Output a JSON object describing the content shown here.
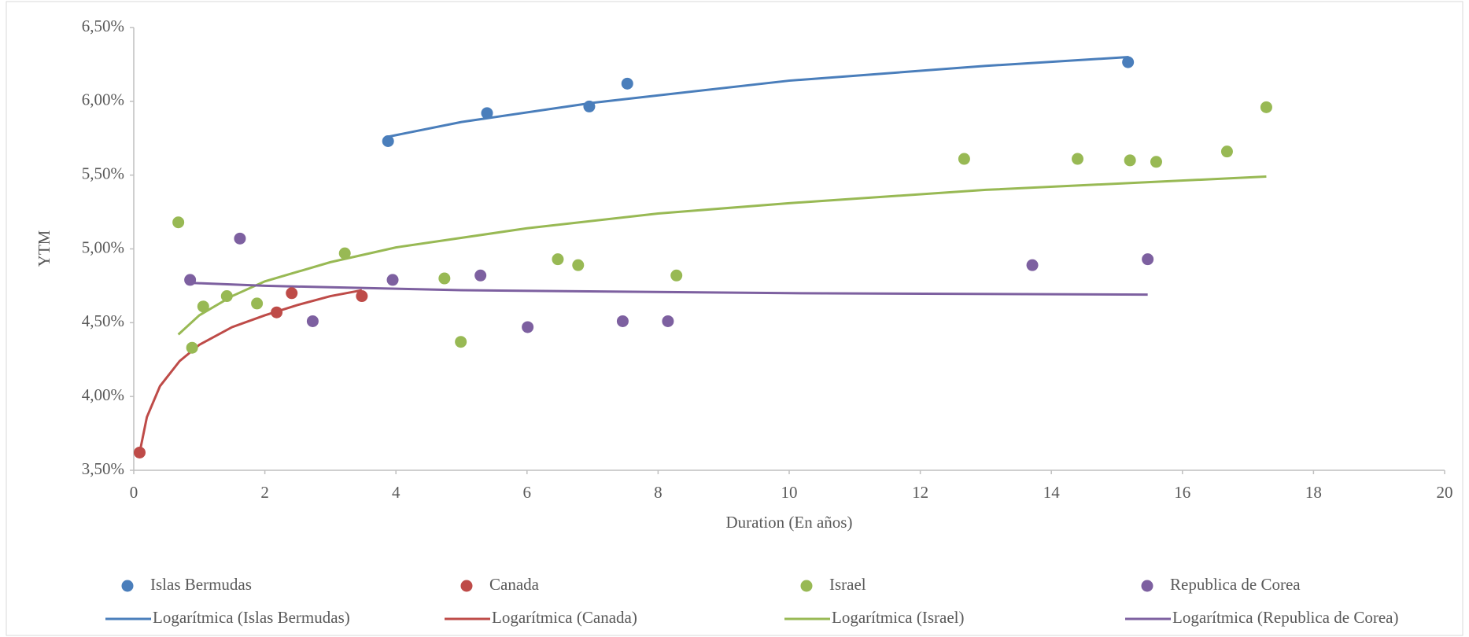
{
  "chart_data": {
    "type": "scatter",
    "x_label": "Duration (En años)",
    "y_label": "YTM",
    "xlim": [
      0,
      20
    ],
    "xticks": [
      0,
      2,
      4,
      6,
      8,
      10,
      12,
      14,
      16,
      18,
      20
    ],
    "ylim": [
      3.5,
      6.5
    ],
    "yticks": [
      {
        "value": 3.5,
        "label": "3,50%"
      },
      {
        "value": 4.0,
        "label": "4,00%"
      },
      {
        "value": 4.5,
        "label": "4,50%"
      },
      {
        "value": 5.0,
        "label": "5,00%"
      },
      {
        "value": 5.5,
        "label": "5,50%"
      },
      {
        "value": 6.0,
        "label": "6,00%"
      },
      {
        "value": 6.5,
        "label": "6,50%"
      }
    ],
    "grid": false,
    "legend": "bottom",
    "series": [
      {
        "name": "Islas Bermudas",
        "color": "#4a7ebb",
        "x": [
          3.88,
          5.39,
          6.95,
          7.53,
          15.17
        ],
        "values": [
          5.73,
          5.92,
          5.965,
          6.12,
          6.265
        ]
      },
      {
        "name": "Canada",
        "color": "#be4b48",
        "x": [
          0.09,
          2.18,
          2.41,
          3.48
        ],
        "values": [
          3.62,
          4.57,
          4.7,
          4.68
        ]
      },
      {
        "name": "Israel",
        "color": "#98b954",
        "x": [
          0.68,
          0.89,
          1.06,
          1.42,
          1.88,
          3.22,
          4.74,
          4.99,
          6.47,
          6.78,
          8.28,
          12.67,
          14.4,
          15.2,
          15.6,
          16.68,
          17.28
        ],
        "values": [
          5.18,
          4.33,
          4.61,
          4.68,
          4.63,
          4.97,
          4.8,
          4.37,
          4.93,
          4.89,
          4.82,
          5.61,
          5.61,
          5.6,
          5.59,
          5.66,
          5.96
        ]
      },
      {
        "name": "Republica de Corea",
        "color": "#7d60a0",
        "x": [
          0.86,
          1.62,
          2.73,
          3.95,
          5.29,
          6.01,
          7.46,
          8.15,
          13.71,
          15.47
        ],
        "values": [
          4.79,
          5.07,
          4.51,
          4.79,
          4.82,
          4.47,
          4.51,
          4.51,
          4.89,
          4.93
        ]
      }
    ],
    "trendlines": [
      {
        "name": "Logarítmica (Islas Bermudas)",
        "color": "#4a7ebb",
        "x": [
          3.88,
          5,
          7,
          10,
          13,
          15.18
        ],
        "values": [
          5.76,
          5.86,
          5.99,
          6.14,
          6.24,
          6.3
        ]
      },
      {
        "name": "Logarítmica (Canada)",
        "color": "#be4b48",
        "x": [
          0.09,
          0.2,
          0.4,
          0.7,
          1,
          1.5,
          2,
          2.5,
          3,
          3.48
        ],
        "values": [
          3.62,
          3.86,
          4.07,
          4.24,
          4.35,
          4.47,
          4.55,
          4.62,
          4.68,
          4.72
        ]
      },
      {
        "name": "Logarítmica (Israel)",
        "color": "#98b954",
        "x": [
          0.68,
          1,
          1.5,
          2,
          3,
          4,
          6,
          8,
          10,
          13,
          17.28
        ],
        "values": [
          4.42,
          4.55,
          4.68,
          4.78,
          4.91,
          5.01,
          5.14,
          5.24,
          5.31,
          5.4,
          5.49
        ]
      },
      {
        "name": "Logarítmica (Republica de Corea)",
        "color": "#7d60a0",
        "x": [
          0.86,
          2,
          5,
          10,
          15.47
        ],
        "values": [
          4.77,
          4.75,
          4.72,
          4.7,
          4.69
        ]
      }
    ]
  }
}
